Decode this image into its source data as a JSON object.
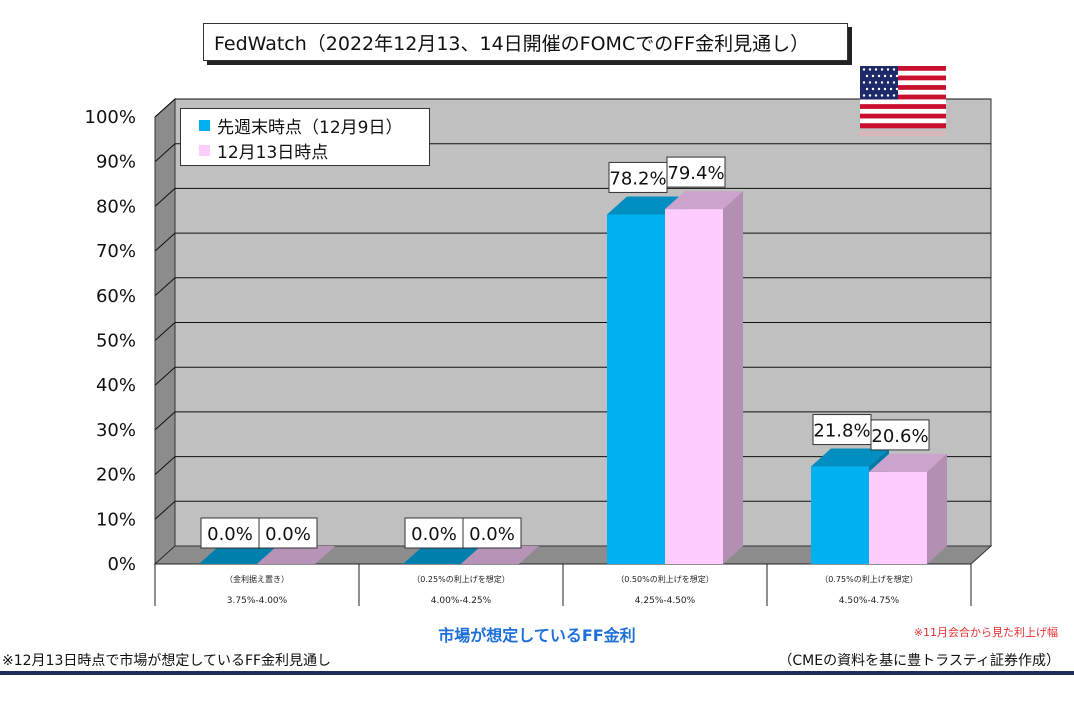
{
  "title": "FedWatch（2022年12月13、14日開催のFOMCでのFF金利見通し）",
  "chart_data": {
    "type": "bar",
    "title": "FedWatch（2022年12月13、14日開催のFOMCでのFF金利見通し）",
    "xlabel": "市場が想定しているFF金利",
    "ylabel": "",
    "ylim": [
      0,
      100
    ],
    "yticks": [
      "0%",
      "10%",
      "20%",
      "30%",
      "40%",
      "50%",
      "60%",
      "70%",
      "80%",
      "90%",
      "100%"
    ],
    "categories": [
      {
        "sub": "（金利据え置き）",
        "range": "3.75%-4.00%"
      },
      {
        "sub": "（0.25%の利上げを想定）",
        "range": "4.00%-4.25%"
      },
      {
        "sub": "（0.50%の利上げを想定）",
        "range": "4.25%-4.50%"
      },
      {
        "sub": "（0.75%の利上げを想定）",
        "range": "4.50%-4.75%"
      }
    ],
    "series": [
      {
        "name": "先週末時点（12月9日）",
        "color": "#00b0f0",
        "values": [
          0.0,
          0.0,
          78.2,
          21.8
        ],
        "labels": [
          "0.0%",
          "0.0%",
          "78.2%",
          "21.8%"
        ]
      },
      {
        "name": "12月13日時点",
        "color": "#ffccff",
        "values": [
          0.0,
          0.0,
          79.4,
          20.6
        ],
        "labels": [
          "0.0%",
          "0.0%",
          "79.4%",
          "20.6%"
        ]
      }
    ],
    "legend_position": "top-left",
    "grid": true
  },
  "notes": {
    "red_note": "※11月会合から見た利上げ幅",
    "left_note": "※12月13日時点で市場が想定しているFF金利見通し",
    "source_note": "（CMEの資料を基に豊トラスティ証券作成）"
  },
  "flag_icon": "us-flag-icon"
}
